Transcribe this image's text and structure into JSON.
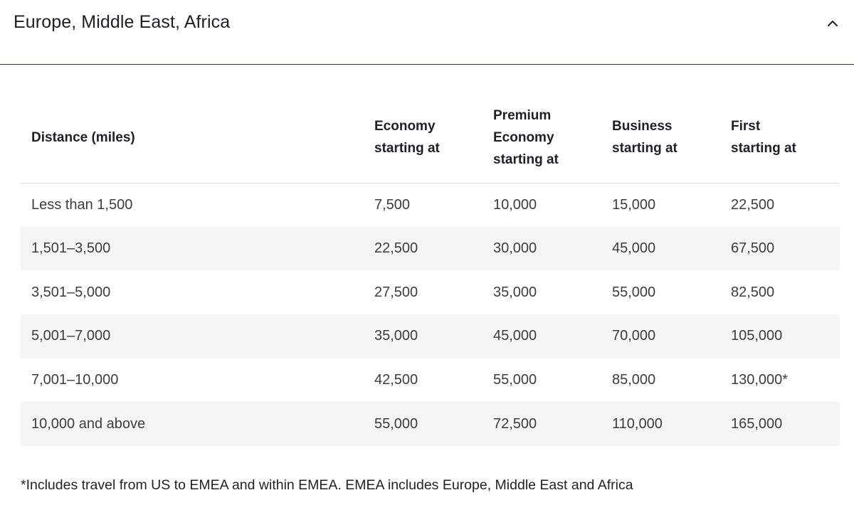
{
  "accordion": {
    "title": "Europe, Middle East, Africa",
    "toggle_icon": "chevron-up-icon"
  },
  "table": {
    "headers": [
      {
        "lines": [
          "Distance (miles)"
        ]
      },
      {
        "lines": [
          "Economy",
          "starting at"
        ]
      },
      {
        "lines": [
          "Premium",
          "Economy",
          "starting at"
        ]
      },
      {
        "lines": [
          "Business",
          "starting at"
        ]
      },
      {
        "lines": [
          "First",
          "starting at"
        ]
      }
    ],
    "rows": [
      [
        "Less than 1,500",
        "7,500",
        "10,000",
        "15,000",
        "22,500"
      ],
      [
        "1,501–3,500",
        "22,500",
        "30,000",
        "45,000",
        "67,500"
      ],
      [
        "3,501–5,000",
        "27,500",
        "35,000",
        "55,000",
        "82,500"
      ],
      [
        "5,001–7,000",
        "35,000",
        "45,000",
        "70,000",
        "105,000"
      ],
      [
        "7,001–10,000",
        "42,500",
        "55,000",
        "85,000",
        "130,000*"
      ],
      [
        "10,000 and above",
        "55,000",
        "72,500",
        "110,000",
        "165,000"
      ]
    ]
  },
  "footnote": "*Includes travel from US to EMEA and within EMEA. EMEA includes Europe, Middle East and Africa",
  "colors": {
    "divider": "#2c2f52",
    "stripe": "#f5f5f6",
    "text": "#3c3c3c"
  }
}
